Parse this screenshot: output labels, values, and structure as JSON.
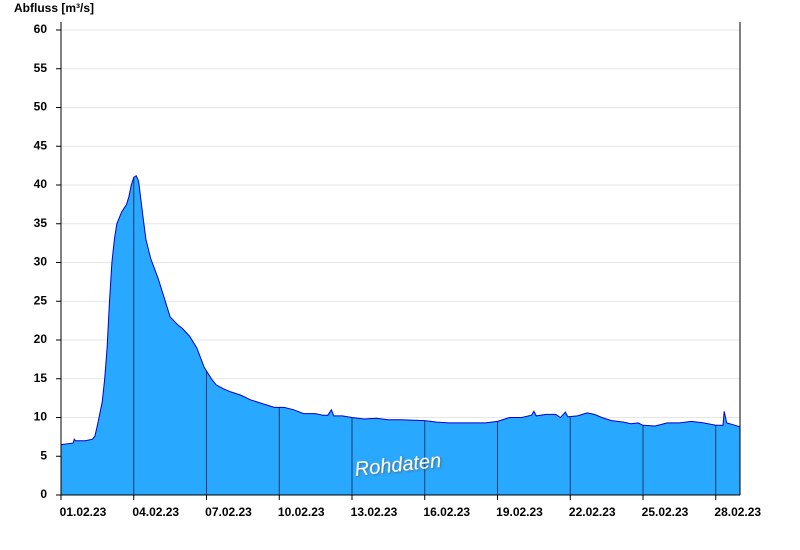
{
  "chart_data": {
    "type": "area",
    "y_label": "Abfluss [m³/s]",
    "annotation": "Rohdaten",
    "color": "#29a8ff",
    "line_color": "#0000cc",
    "grid": true,
    "xlim": [
      0,
      28
    ],
    "xticks": [
      {
        "value": 0,
        "label": "01.02.23"
      },
      {
        "value": 3,
        "label": "04.02.23"
      },
      {
        "value": 6,
        "label": "07.02.23"
      },
      {
        "value": 9,
        "label": "10.02.23"
      },
      {
        "value": 12,
        "label": "13.02.23"
      },
      {
        "value": 15,
        "label": "16.02.23"
      },
      {
        "value": 18,
        "label": "19.02.23"
      },
      {
        "value": 21,
        "label": "22.02.23"
      },
      {
        "value": 24,
        "label": "25.02.23"
      },
      {
        "value": 27,
        "label": "28.02.23"
      }
    ],
    "ylim": [
      0,
      60
    ],
    "yticks": [
      0,
      5,
      10,
      15,
      20,
      25,
      30,
      35,
      40,
      45,
      50,
      55,
      60
    ],
    "x": [
      0,
      0.5,
      0.55,
      0.6,
      1.0,
      1.3,
      1.4,
      1.5,
      1.6,
      1.7,
      1.8,
      1.9,
      2.0,
      2.1,
      2.2,
      2.3,
      2.5,
      2.7,
      2.8,
      2.9,
      3.0,
      3.1,
      3.2,
      3.3,
      3.4,
      3.5,
      3.7,
      4.0,
      4.3,
      4.5,
      4.8,
      5.0,
      5.3,
      5.6,
      5.9,
      6.2,
      6.4,
      6.7,
      7.0,
      7.4,
      7.8,
      8.3,
      8.8,
      9.2,
      9.6,
      10.0,
      10.5,
      10.8,
      11.0,
      11.15,
      11.25,
      11.6,
      12,
      12.5,
      13,
      13.5,
      14,
      15,
      15.5,
      16,
      17,
      17.5,
      18,
      18.5,
      19,
      19.4,
      19.5,
      19.6,
      20,
      20.4,
      20.6,
      20.8,
      20.9,
      21.3,
      21.7,
      22,
      22.3,
      22.7,
      23.2,
      23.5,
      23.8,
      24,
      24.5,
      25,
      25.5,
      26,
      26.5,
      27,
      27.3,
      27.35,
      27.45,
      27.8,
      28
    ],
    "values": [
      6.5,
      6.7,
      7.2,
      7.0,
      7.0,
      7.2,
      7.6,
      9,
      10.5,
      12,
      15,
      19,
      25,
      30,
      33,
      35,
      36.5,
      37.5,
      38.5,
      40,
      41,
      41.2,
      40.5,
      38,
      35.5,
      33,
      30.5,
      28,
      25,
      23,
      22,
      21.5,
      20.5,
      19,
      16.5,
      15,
      14.2,
      13.7,
      13.3,
      12.9,
      12.3,
      11.8,
      11.3,
      11.3,
      11.0,
      10.5,
      10.5,
      10.3,
      10.3,
      11.0,
      10.2,
      10.2,
      10.0,
      9.8,
      9.9,
      9.7,
      9.7,
      9.6,
      9.4,
      9.3,
      9.3,
      9.3,
      9.5,
      10.0,
      10.0,
      10.3,
      10.8,
      10.2,
      10.4,
      10.4,
      10.0,
      10.7,
      10.1,
      10.2,
      10.6,
      10.4,
      10.0,
      9.6,
      9.4,
      9.2,
      9.3,
      9.0,
      8.9,
      9.3,
      9.3,
      9.5,
      9.3,
      9.0,
      9.0,
      10.8,
      9.3,
      9.0,
      8.8
    ]
  }
}
